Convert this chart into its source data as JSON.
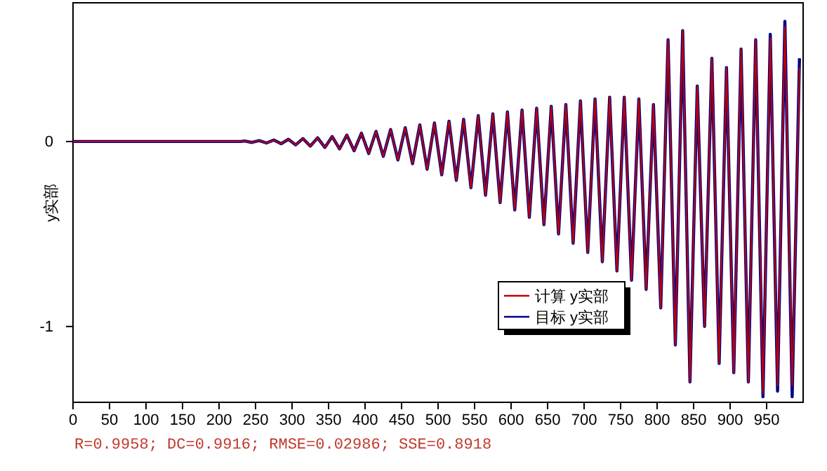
{
  "chart_data": {
    "type": "line",
    "ylabel": "y实部",
    "annotations": [
      "R=0.9958; DC=0.9916; RMSE=0.02986; SSE=0.8918"
    ],
    "x": [
      0,
      230,
      235,
      245,
      255,
      265,
      275,
      285,
      295,
      305,
      315,
      325,
      335,
      345,
      355,
      365,
      375,
      385,
      395,
      405,
      415,
      425,
      435,
      445,
      455,
      465,
      475,
      485,
      495,
      505,
      515,
      525,
      535,
      545,
      555,
      565,
      575,
      585,
      595,
      605,
      615,
      625,
      635,
      645,
      655,
      665,
      675,
      685,
      695,
      705,
      715,
      725,
      735,
      745,
      755,
      765,
      775,
      785,
      795,
      805,
      815,
      825,
      835,
      845,
      855,
      865,
      875,
      885,
      895,
      905,
      915,
      925,
      935,
      945,
      955,
      965,
      975,
      985,
      995
    ],
    "series": [
      {
        "name": "计算 y实部",
        "color": "#c00000",
        "values": [
          0,
          0,
          0.003,
          -0.005,
          0.005,
          -0.008,
          0.008,
          -0.012,
          0.012,
          -0.018,
          0.016,
          -0.025,
          0.02,
          -0.032,
          0.027,
          -0.04,
          0.035,
          -0.05,
          0.045,
          -0.065,
          0.055,
          -0.08,
          0.065,
          -0.1,
          0.075,
          -0.12,
          0.09,
          -0.15,
          0.1,
          -0.18,
          0.11,
          -0.21,
          0.12,
          -0.25,
          0.14,
          -0.29,
          0.15,
          -0.33,
          0.16,
          -0.37,
          0.17,
          -0.41,
          0.18,
          -0.45,
          0.19,
          -0.5,
          0.2,
          -0.55,
          0.22,
          -0.6,
          0.23,
          -0.65,
          0.24,
          -0.7,
          0.24,
          -0.75,
          0.23,
          -0.8,
          0.2,
          -0.9,
          0.55,
          -1.1,
          0.6,
          -1.3,
          0.3,
          -1.0,
          0.45,
          -1.2,
          0.4,
          -1.25,
          0.5,
          -1.3,
          0.55,
          -1.36,
          0.56,
          -1.32,
          0.62,
          -1.32,
          0.4
        ]
      },
      {
        "name": "目标 y实部",
        "color": "#00008b",
        "values": [
          0,
          0,
          0.003,
          -0.005,
          0.005,
          -0.008,
          0.008,
          -0.012,
          0.012,
          -0.018,
          0.016,
          -0.025,
          0.02,
          -0.032,
          0.027,
          -0.04,
          0.035,
          -0.05,
          0.045,
          -0.065,
          0.055,
          -0.08,
          0.065,
          -0.1,
          0.075,
          -0.12,
          0.09,
          -0.15,
          0.1,
          -0.18,
          0.11,
          -0.21,
          0.12,
          -0.25,
          0.14,
          -0.29,
          0.15,
          -0.33,
          0.16,
          -0.37,
          0.17,
          -0.41,
          0.18,
          -0.45,
          0.19,
          -0.5,
          0.2,
          -0.55,
          0.22,
          -0.6,
          0.23,
          -0.65,
          0.24,
          -0.7,
          0.24,
          -0.75,
          0.23,
          -0.8,
          0.2,
          -0.9,
          0.55,
          -1.1,
          0.6,
          -1.3,
          0.3,
          -1.0,
          0.45,
          -1.2,
          0.4,
          -1.25,
          0.5,
          -1.3,
          0.55,
          -1.38,
          0.58,
          -1.35,
          0.65,
          -1.38,
          0.45
        ]
      }
    ],
    "xlim": [
      0,
      1000
    ],
    "xticks": [
      0,
      50,
      100,
      150,
      200,
      250,
      300,
      350,
      400,
      450,
      500,
      550,
      600,
      650,
      700,
      750,
      800,
      850,
      900,
      950
    ],
    "ylim": [
      -1.41,
      0.75
    ],
    "yticks": [
      0,
      -1
    ],
    "grid": false,
    "legend": "bottom right",
    "line_style": "solid"
  }
}
